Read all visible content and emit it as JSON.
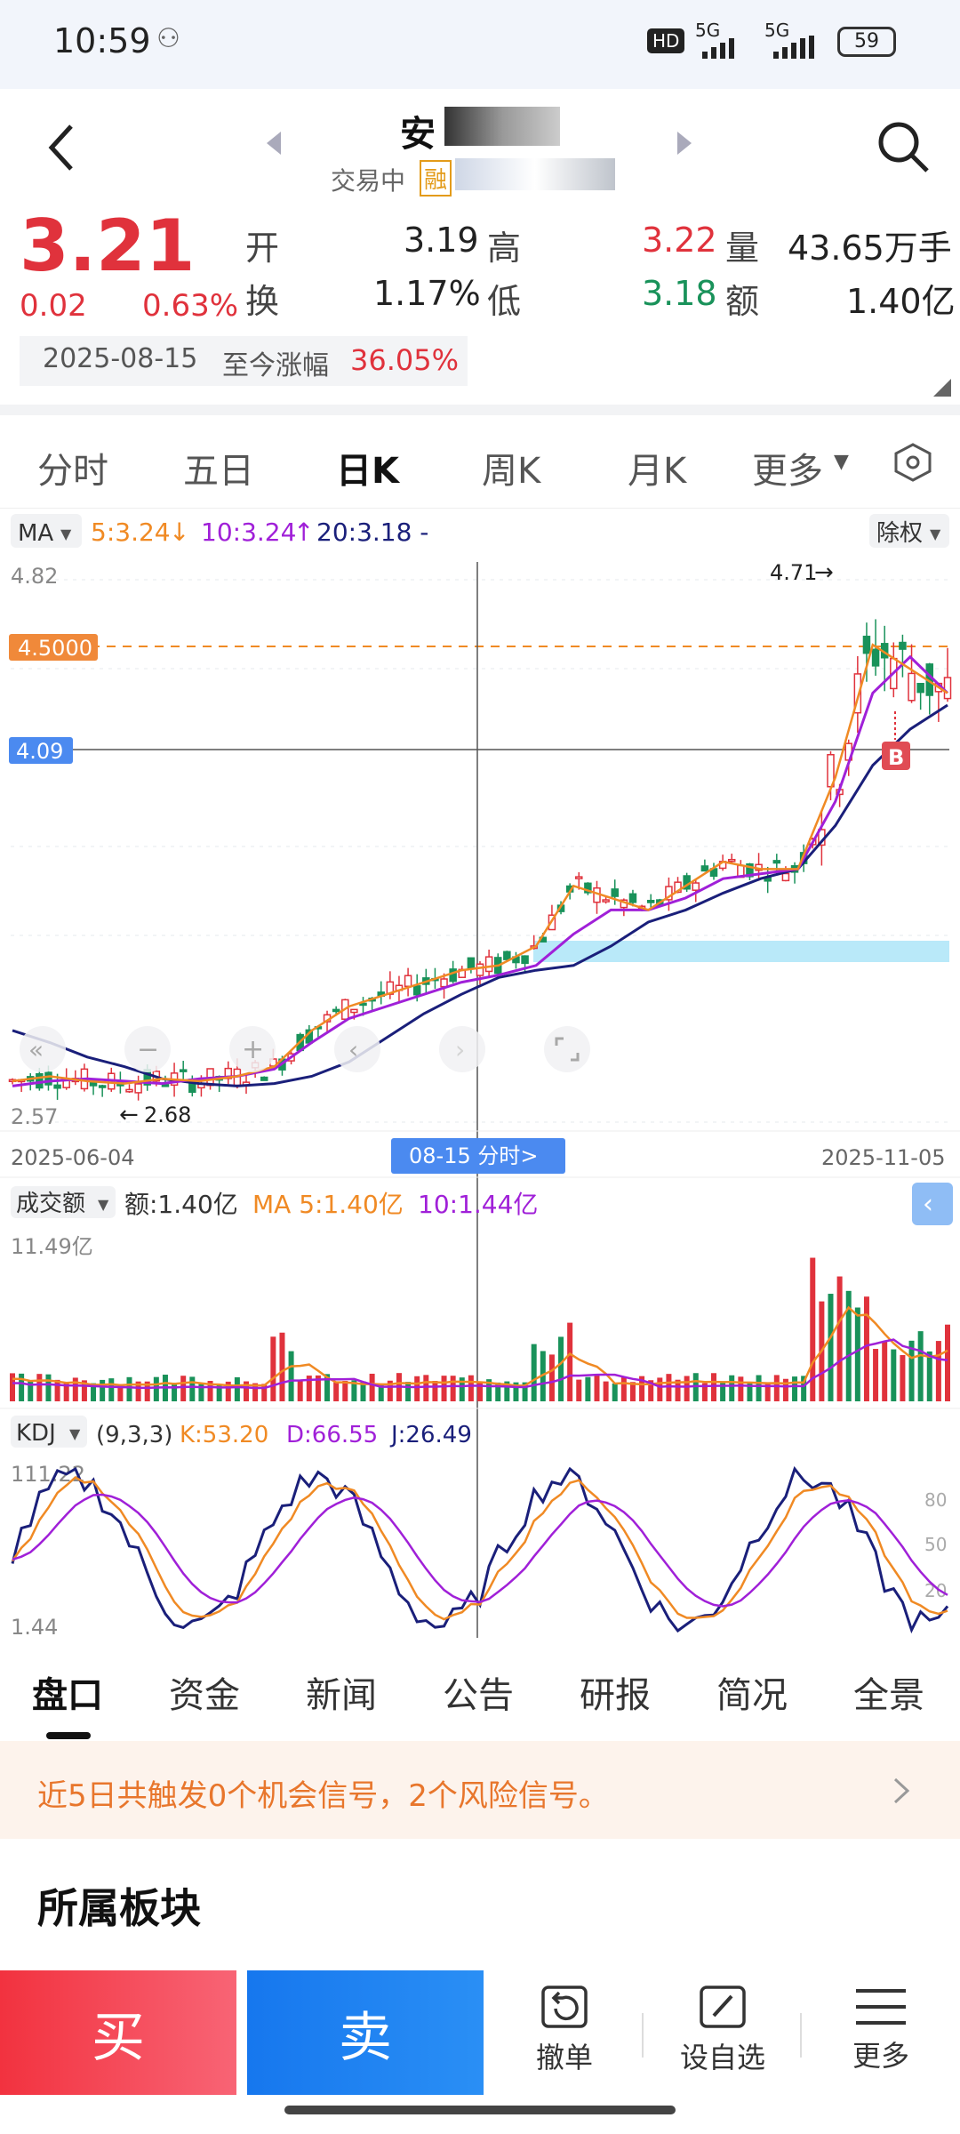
{
  "status": {
    "time": "10:59",
    "battery": "59",
    "net1": "5G",
    "net2": "5G",
    "hd": "HD"
  },
  "header": {
    "title": "安",
    "subtitle": "交易中",
    "rong": "融"
  },
  "quote": {
    "price": "3.21",
    "change": "0.02",
    "pct": "0.63%",
    "date": "2025-08-15",
    "since_label": "至今涨幅",
    "since_val": "36.05%",
    "open_label": "开",
    "open": "3.19",
    "high_label": "高",
    "high": "3.22",
    "vol_label": "量",
    "vol": "43.65万手",
    "turn_label": "换",
    "turn": "1.17%",
    "low_label": "低",
    "low": "3.18",
    "amt_label": "额",
    "amt": "1.40亿"
  },
  "tabs": [
    "分时",
    "五日",
    "日K",
    "周K",
    "月K",
    "更多"
  ],
  "ma_bar": {
    "label": "MA",
    "ma5": "5:3.24",
    "ma10": "10:3.24",
    "ma20": "20:3.18 -",
    "adjust": "除权"
  },
  "kchart": {
    "ymax": "4.82",
    "ymin": "2.57",
    "line_orange": "4.5000",
    "line_blue": "4.09",
    "max_note": "4.71",
    "min_note": "2.68",
    "date_start": "2025-06-04",
    "date_end": "2025-11-05",
    "cursor_label": "08-15 分时>",
    "b_mark": "B"
  },
  "vol_bar": {
    "label": "成交额",
    "amt": "额:1.40亿",
    "ma5": "MA 5:1.40亿",
    "ma10": "10:1.44亿",
    "ymax": "11.49亿"
  },
  "kdj_bar": {
    "label": "KDJ",
    "params": "(9,3,3)",
    "k": "K:53.20",
    "d": "D:66.55",
    "j": "J:26.49",
    "ymax": "111.22",
    "ymin": "1.44",
    "l80": "80",
    "l50": "50",
    "l20": "20"
  },
  "subtabs": [
    "盘口",
    "资金",
    "新闻",
    "公告",
    "研报",
    "简况",
    "全景"
  ],
  "notice": "近5日共触发0个机会信号，2个风险信号。",
  "section": "所属板块",
  "bottom": {
    "buy": "买",
    "sell": "卖",
    "cancel": "撤单",
    "watch": "设自选",
    "more": "更多"
  },
  "colors": {
    "up": "#e0323c",
    "down": "#19925a",
    "ma5": "#f08a24",
    "ma10": "#a020d8",
    "ma20": "#1a1f7a"
  },
  "chart_data": {
    "type": "candlestick",
    "title": "",
    "ylim": [
      2.57,
      4.82
    ],
    "x_start": "2025-06-04",
    "x_end": "2025-11-05",
    "ma20": [
      2.95,
      2.9,
      2.84,
      2.8,
      2.75,
      2.73,
      2.72,
      2.73,
      2.76,
      2.82,
      2.92,
      3.02,
      3.1,
      3.17,
      3.2,
      3.22,
      3.3,
      3.4,
      3.45,
      3.52,
      3.58,
      3.62,
      3.8,
      4.05,
      4.2,
      4.3
    ],
    "ma5": [
      2.74,
      2.76,
      2.74,
      2.73,
      2.75,
      2.74,
      2.76,
      2.8,
      2.95,
      3.05,
      3.1,
      3.15,
      3.2,
      3.22,
      3.3,
      3.55,
      3.5,
      3.45,
      3.55,
      3.65,
      3.62,
      3.62,
      4.0,
      4.55,
      4.45,
      4.35
    ],
    "ma10": [
      2.72,
      2.74,
      2.75,
      2.74,
      2.73,
      2.75,
      2.76,
      2.79,
      2.9,
      3.0,
      3.05,
      3.1,
      3.15,
      3.18,
      3.22,
      3.35,
      3.45,
      3.45,
      3.5,
      3.58,
      3.6,
      3.62,
      3.9,
      4.35,
      4.5,
      4.35
    ],
    "volume_ymax": 11.49,
    "kdj": {
      "k": 53.2,
      "d": 66.55,
      "j": 26.49,
      "ylim": [
        1.44,
        111.22
      ]
    }
  }
}
